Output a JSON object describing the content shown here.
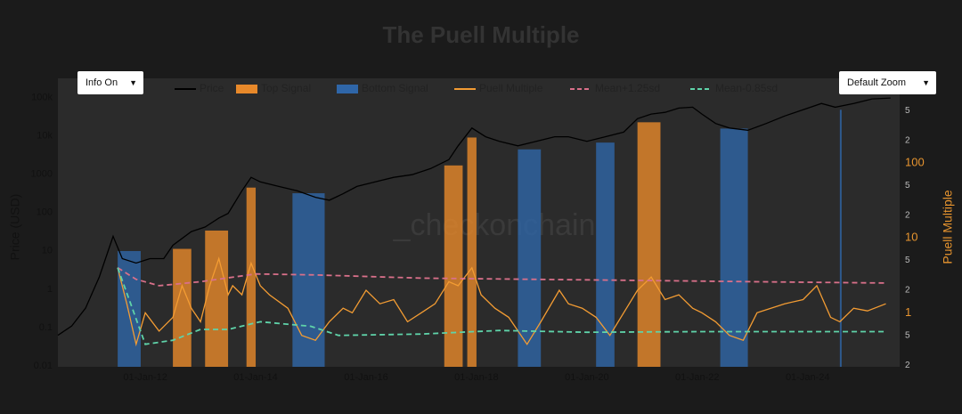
{
  "title": "The Puell Multiple",
  "controls": {
    "info": "Info On",
    "zoom": "Default Zoom"
  },
  "chart_data": {
    "type": "line",
    "watermark": "_checkonchain",
    "y_label": "Price (USD)",
    "y2_label": "Puell Multiple",
    "legend": "top",
    "grid": false,
    "xlim": [
      "2010-06",
      "2025-09"
    ],
    "xticks": [
      {
        "value": "2012-01-01",
        "label": "01-Jan-12"
      },
      {
        "value": "2014-01-01",
        "label": "01-Jan-14"
      },
      {
        "value": "2016-01-01",
        "label": "01-Jan-16"
      },
      {
        "value": "2018-01-01",
        "label": "01-Jan-18"
      },
      {
        "value": "2020-01-01",
        "label": "01-Jan-20"
      },
      {
        "value": "2022-01-01",
        "label": "01-Jan-22"
      },
      {
        "value": "2024-01-01",
        "label": "01-Jan-24"
      }
    ],
    "y_log": true,
    "ylim": [
      0.0095,
      316000
    ],
    "yticks": [
      0.01,
      0.1,
      1,
      10,
      100,
      1000,
      {
        "value": 10000,
        "label": "10k"
      },
      {
        "value": 100000,
        "label": "100k"
      }
    ],
    "y2_log": true,
    "y2lim": [
      0.19,
      1350
    ],
    "y2ticks": [
      {
        "value": 0.2,
        "label": "2"
      },
      {
        "value": 0.5,
        "label": "5"
      },
      1,
      2,
      5,
      10,
      {
        "value": 20,
        "label": "2"
      },
      {
        "value": 50,
        "label": "5"
      },
      100,
      {
        "value": 200,
        "label": "2"
      },
      {
        "value": 500,
        "label": "5"
      }
    ],
    "series": [
      {
        "name": "Price",
        "type": "line",
        "axis": "y",
        "color": "#000000",
        "x": [
          "2010-06",
          "2010-09",
          "2010-12",
          "2011-03",
          "2011-06",
          "2011-08",
          "2011-11",
          "2012-02",
          "2012-05",
          "2012-07",
          "2012-11",
          "2013-02",
          "2013-05",
          "2013-07",
          "2013-10",
          "2013-12",
          "2014-02",
          "2014-06",
          "2014-10",
          "2015-02",
          "2015-05",
          "2015-08",
          "2015-11",
          "2016-03",
          "2016-07",
          "2016-11",
          "2017-03",
          "2017-07",
          "2017-09",
          "2017-12",
          "2018-03",
          "2018-06",
          "2018-10",
          "2019-02",
          "2019-06",
          "2019-09",
          "2020-01",
          "2020-05",
          "2020-09",
          "2020-12",
          "2021-03",
          "2021-06",
          "2021-09",
          "2021-12",
          "2022-02",
          "2022-05",
          "2022-08",
          "2022-12",
          "2023-04",
          "2023-08",
          "2023-12",
          "2024-04",
          "2024-07",
          "2024-11",
          "2025-03",
          "2025-07"
        ],
        "values": [
          0.063,
          0.11,
          0.32,
          2.1,
          24,
          6.3,
          4.8,
          6.3,
          6.3,
          14,
          32,
          42,
          72,
          95,
          370,
          830,
          630,
          480,
          370,
          250,
          210,
          310,
          480,
          630,
          830,
          970,
          1400,
          2400,
          5500,
          16000,
          9500,
          7200,
          5500,
          7200,
          9500,
          9500,
          7200,
          9500,
          12500,
          28000,
          37000,
          41000,
          53000,
          56000,
          37000,
          21000,
          16000,
          14000,
          21000,
          33000,
          48000,
          70000,
          56000,
          70000,
          92000,
          97000
        ]
      },
      {
        "name": "Top Signal",
        "type": "band",
        "color": "#e8892a",
        "ranges": [
          [
            "2012-07",
            "2012-11"
          ],
          [
            "2013-02",
            "2013-07"
          ],
          [
            "2013-11",
            "2014-01"
          ],
          [
            "2017-06",
            "2017-10"
          ],
          [
            "2017-11",
            "2018-01"
          ],
          [
            "2020-12",
            "2021-05"
          ]
        ]
      },
      {
        "name": "Bottom Signal",
        "type": "band",
        "color": "#2f66a8",
        "ranges": [
          [
            "2011-07",
            "2011-12"
          ],
          [
            "2014-09",
            "2015-04"
          ],
          [
            "2018-10",
            "2019-03"
          ],
          [
            "2020-03",
            "2020-07"
          ],
          [
            "2022-06",
            "2022-12"
          ],
          [
            "2024-08",
            "2024-08"
          ]
        ]
      },
      {
        "name": "Puell Multiple",
        "type": "line",
        "axis": "y2",
        "color": "#f39c33",
        "x": [
          "2011-07",
          "2011-09",
          "2011-11",
          "2012-01",
          "2012-04",
          "2012-07",
          "2012-09",
          "2012-11",
          "2013-01",
          "2013-03",
          "2013-05",
          "2013-07",
          "2013-08",
          "2013-10",
          "2013-12",
          "2014-02",
          "2014-04",
          "2014-08",
          "2014-11",
          "2015-02",
          "2015-05",
          "2015-08",
          "2015-10",
          "2016-01",
          "2016-04",
          "2016-07",
          "2016-10",
          "2017-01",
          "2017-04",
          "2017-07",
          "2017-09",
          "2017-12",
          "2018-02",
          "2018-05",
          "2018-08",
          "2018-12",
          "2019-03",
          "2019-07",
          "2019-09",
          "2019-12",
          "2020-03",
          "2020-06",
          "2020-09",
          "2020-12",
          "2021-03",
          "2021-06",
          "2021-09",
          "2021-12",
          "2022-02",
          "2022-05",
          "2022-08",
          "2022-11",
          "2023-02",
          "2023-05",
          "2023-08",
          "2023-12",
          "2024-03",
          "2024-06",
          "2024-08",
          "2024-11",
          "2025-02",
          "2025-06"
        ],
        "values": [
          4.0,
          1.3,
          0.38,
          1.0,
          0.57,
          0.87,
          2.3,
          1.15,
          0.76,
          2.3,
          5.3,
          1.74,
          2.3,
          1.74,
          4.6,
          2.3,
          1.74,
          1.15,
          0.5,
          0.43,
          0.76,
          1.15,
          1.0,
          2.0,
          1.32,
          1.5,
          0.76,
          1.0,
          1.32,
          2.6,
          2.3,
          4.0,
          1.74,
          1.15,
          0.87,
          0.38,
          0.76,
          2.0,
          1.32,
          1.15,
          0.87,
          0.5,
          1.0,
          2.0,
          3.0,
          1.5,
          1.74,
          1.15,
          1.0,
          0.76,
          0.5,
          0.43,
          1.0,
          1.15,
          1.32,
          1.5,
          2.3,
          0.87,
          0.76,
          1.15,
          1.06,
          1.32
        ]
      },
      {
        "name": "Mean+1.25sd",
        "type": "line",
        "axis": "y2",
        "color": "#d9708a",
        "dash": true,
        "x": [
          "2011-07",
          "2011-11",
          "2012-04",
          "2013-01",
          "2014-01",
          "2015-02",
          "2017-01",
          "2019-01",
          "2021-01",
          "2023-01",
          "2025-06"
        ],
        "values": [
          4.0,
          2.8,
          2.3,
          2.6,
          3.3,
          3.2,
          2.9,
          2.8,
          2.7,
          2.6,
          2.5
        ]
      },
      {
        "name": "Mean-0.85sd",
        "type": "line",
        "axis": "y2",
        "color": "#5fd3a9",
        "dash": true,
        "x": [
          "2011-07",
          "2012-01",
          "2012-07",
          "2013-01",
          "2013-07",
          "2014-02",
          "2015-01",
          "2015-07",
          "2017-01",
          "2018-06",
          "2020-01",
          "2022-01",
          "2025-06"
        ],
        "values": [
          4.0,
          0.38,
          0.43,
          0.6,
          0.6,
          0.76,
          0.66,
          0.5,
          0.52,
          0.58,
          0.55,
          0.56,
          0.56
        ]
      }
    ]
  }
}
